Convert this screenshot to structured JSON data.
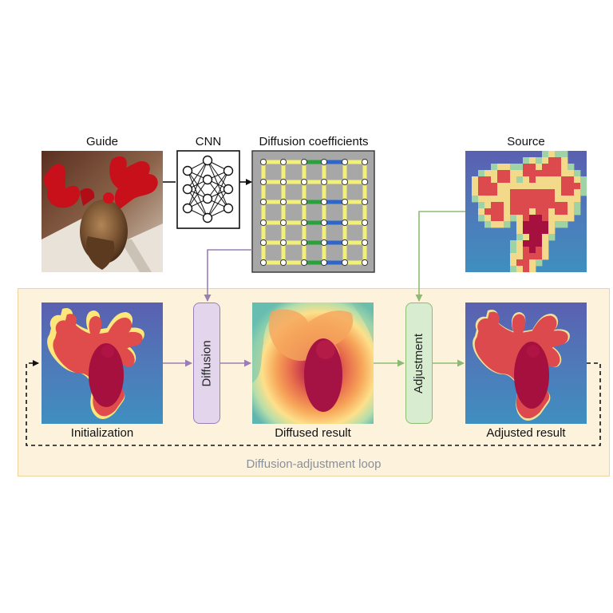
{
  "labels": {
    "guide": "Guide",
    "cnn": "CNN",
    "coefficients": "Diffusion coefficients",
    "source": "Source",
    "initialization": "Initialization",
    "diffused": "Diffused result",
    "adjusted": "Adjusted result",
    "loop": "Diffusion-adjustment loop"
  },
  "operators": {
    "diffusion": "Diffusion",
    "adjustment": "Adjustment"
  },
  "colors": {
    "loop_fill": "#fdf3dd",
    "loop_border": "#ecd3a0",
    "diffusion_fill": "#e3d5ec",
    "diffusion_border": "#9b7fb4",
    "adjustment_fill": "#d8ecd0",
    "adjustment_border": "#8dbb73",
    "coeff_panel": "#a7a7a7",
    "coeff_yellow": "#f3f07a",
    "coeff_green": "#2aa23a",
    "coeff_blue": "#2f66c9"
  }
}
